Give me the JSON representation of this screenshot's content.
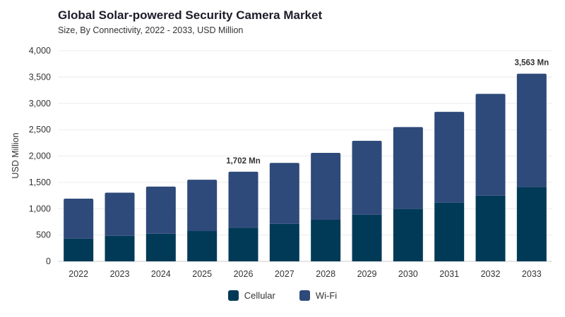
{
  "chart_data": {
    "type": "bar",
    "stacked": true,
    "title": "Global Solar-powered Security Camera Market",
    "subtitle": "Size, By Connectivity, 2022 - 2033, USD Million",
    "ylabel": "USD Million",
    "xlabel": "",
    "ylim": [
      0,
      4000
    ],
    "yticks": [
      0,
      500,
      1000,
      1500,
      2000,
      2500,
      3000,
      3500,
      4000
    ],
    "ytick_labels": [
      "0",
      "500",
      "1,000",
      "1,500",
      "2,000",
      "2,500",
      "3,000",
      "3,500",
      "4,000"
    ],
    "grid": true,
    "legend_position": "bottom",
    "categories": [
      "2022",
      "2023",
      "2024",
      "2025",
      "2026",
      "2027",
      "2028",
      "2029",
      "2030",
      "2031",
      "2032",
      "2033"
    ],
    "series": [
      {
        "name": "Cellular",
        "color": "#003a57",
        "values": [
          430,
          485,
          525,
          575,
          640,
          710,
          790,
          885,
          995,
          1115,
          1245,
          1410
        ]
      },
      {
        "name": "Wi-Fi",
        "color": "#2e4a7a",
        "values": [
          760,
          820,
          895,
          975,
          1062,
          1160,
          1270,
          1405,
          1555,
          1725,
          1935,
          2153
        ]
      }
    ],
    "annotations": [
      {
        "category": "2026",
        "value": 1702,
        "text": "1,702 Mn"
      },
      {
        "category": "2033",
        "value": 3563,
        "text": "3,563 Mn"
      }
    ]
  }
}
